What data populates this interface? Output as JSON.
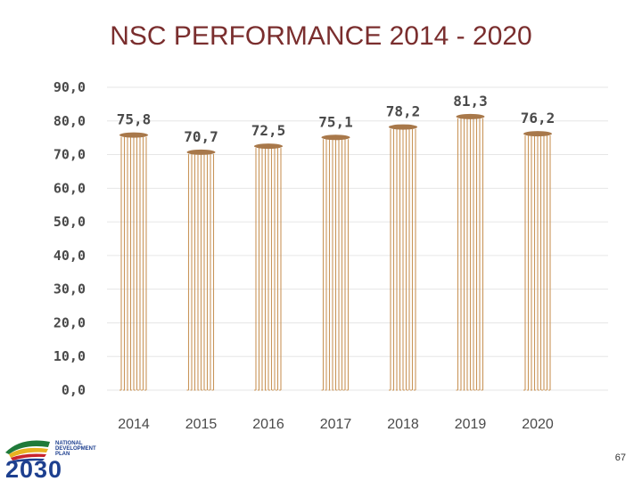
{
  "slide": {
    "title": "NSC PERFORMANCE 2014 - 2020",
    "page_number": "67"
  },
  "logo": {
    "line1": "NATIONAL",
    "line2": "DEVELOPMENT",
    "line3": "PLAN",
    "year": "2030"
  },
  "colors": {
    "bar_fill": "#ffffff",
    "bar_stroke": "#c9955a",
    "bar_cap": "#a8784a",
    "grid": "#e6e6e6",
    "title": "#7a2e2e"
  },
  "chart_data": {
    "type": "bar",
    "title": "NSC PERFORMANCE 2014 - 2020",
    "categories": [
      "2014",
      "2015",
      "2016",
      "2017",
      "2018",
      "2019",
      "2020"
    ],
    "values": [
      75.8,
      70.7,
      72.5,
      75.1,
      78.2,
      81.3,
      76.2
    ],
    "value_labels": [
      "75,8",
      "70,7",
      "72,5",
      "75,1",
      "78,2",
      "81,3",
      "76,2"
    ],
    "y_ticks": [
      0,
      10,
      20,
      30,
      40,
      50,
      60,
      70,
      80,
      90
    ],
    "y_tick_labels": [
      "0,0",
      "10,0",
      "20,0",
      "30,0",
      "40,0",
      "50,0",
      "60,0",
      "70,0",
      "80,0",
      "90,0"
    ],
    "ylim": [
      0,
      90
    ],
    "xlabel": "",
    "ylabel": "",
    "grid": true,
    "legend": "none"
  }
}
